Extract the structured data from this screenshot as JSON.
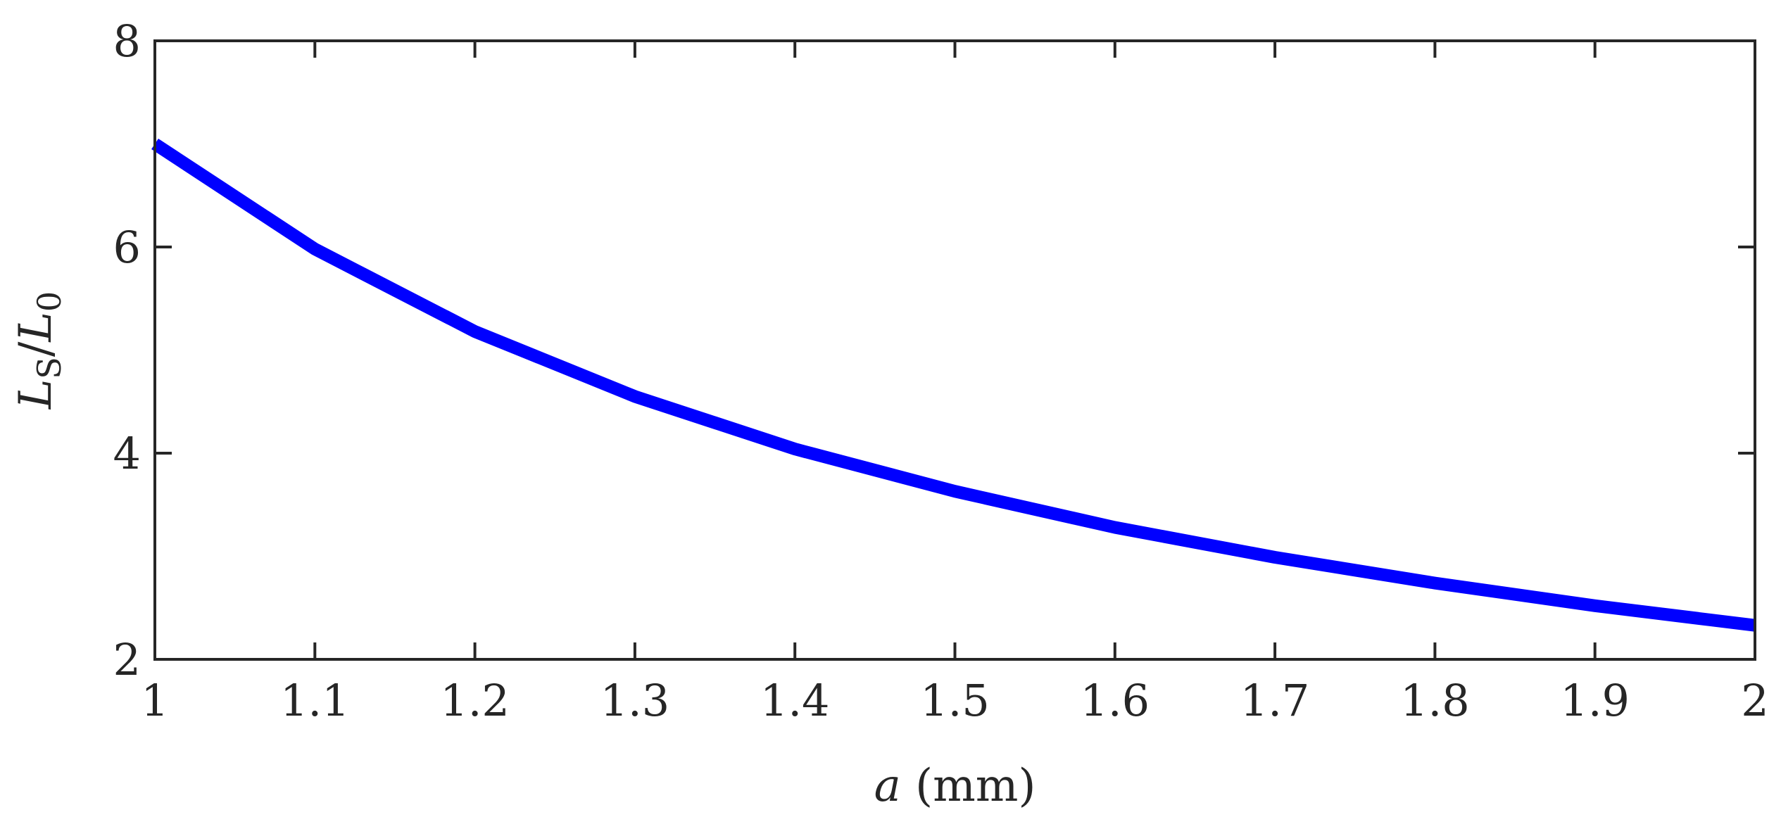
{
  "chart_data": {
    "type": "line",
    "title": "",
    "xlabel_var": "a",
    "xlabel_unit": " (mm)",
    "ylabel": {
      "base1": "L",
      "sub1": "S",
      "sep": "/",
      "base2": "L",
      "sub2": "0"
    },
    "xlim": [
      1,
      2
    ],
    "ylim": [
      2,
      8
    ],
    "xticks": [
      1,
      1.1,
      1.2,
      1.3,
      1.4,
      1.5,
      1.6,
      1.7,
      1.8,
      1.9,
      2
    ],
    "xtick_labels": [
      "1",
      "1.1",
      "1.2",
      "1.3",
      "1.4",
      "1.5",
      "1.6",
      "1.7",
      "1.8",
      "1.9",
      "2"
    ],
    "yticks": [
      2,
      4,
      6,
      8
    ],
    "ytick_labels": [
      "2",
      "4",
      "6",
      "8"
    ],
    "grid": false,
    "legend": "none",
    "series": [
      {
        "color": "#0000ff",
        "x": [
          1,
          1.1,
          1.2,
          1.3,
          1.4,
          1.5,
          1.6,
          1.7,
          1.8,
          1.9,
          2
        ],
        "y": [
          7.0,
          5.98,
          5.18,
          4.55,
          4.04,
          3.63,
          3.28,
          2.99,
          2.74,
          2.52,
          2.33
        ]
      }
    ]
  }
}
